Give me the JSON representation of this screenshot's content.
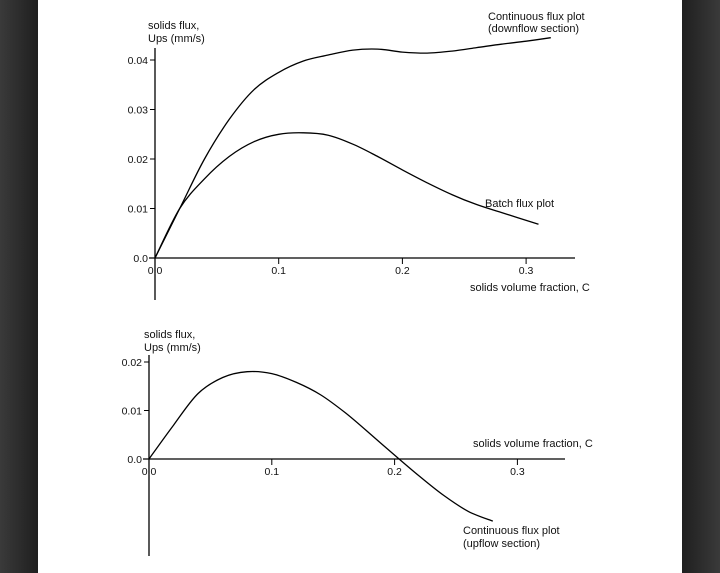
{
  "chart_data": [
    {
      "type": "line",
      "ylabel_line1": "solids flux,",
      "ylabel_line2": "Ups (mm/s)",
      "xlabel": "solids volume fraction, C",
      "xlim": [
        0,
        0.34
      ],
      "ylim": [
        0,
        0.04
      ],
      "x_ticks": [
        0.0,
        0.1,
        0.2,
        0.3
      ],
      "x_tick_labels": [
        "0.0",
        "0.1",
        "0.2",
        "0.3"
      ],
      "y_ticks": [
        0.0,
        0.01,
        0.02,
        0.03,
        0.04
      ],
      "y_tick_labels": [
        "0.0",
        "0.01",
        "0.02",
        "0.03",
        "0.04"
      ],
      "series": [
        {
          "name": "Continuous flux plot (downflow section)",
          "label_line1": "Continuous flux plot",
          "label_line2": "(downflow section)",
          "x": [
            0.0,
            0.02,
            0.04,
            0.06,
            0.08,
            0.1,
            0.12,
            0.14,
            0.16,
            0.18,
            0.2,
            0.22,
            0.24,
            0.26,
            0.28,
            0.3,
            0.32
          ],
          "y": [
            0.0,
            0.01,
            0.02,
            0.028,
            0.034,
            0.0375,
            0.0398,
            0.041,
            0.042,
            0.0422,
            0.0416,
            0.0414,
            0.0418,
            0.0425,
            0.0432,
            0.0438,
            0.0445
          ]
        },
        {
          "name": "Batch flux plot",
          "label_line1": "Batch flux plot",
          "x": [
            0.0,
            0.02,
            0.04,
            0.06,
            0.08,
            0.1,
            0.12,
            0.14,
            0.16,
            0.18,
            0.2,
            0.22,
            0.24,
            0.26,
            0.28,
            0.31
          ],
          "y": [
            0.0,
            0.01,
            0.016,
            0.0205,
            0.0235,
            0.025,
            0.0253,
            0.0248,
            0.023,
            0.0205,
            0.0178,
            0.0152,
            0.0128,
            0.0108,
            0.0092,
            0.0068
          ]
        }
      ]
    },
    {
      "type": "line",
      "ylabel_line1": "solids flux,",
      "ylabel_line2": "Ups (mm/s)",
      "xlabel": "solids volume fraction, C",
      "xlim": [
        0,
        0.34
      ],
      "ylim": [
        -0.02,
        0.02
      ],
      "x_ticks": [
        0.0,
        0.1,
        0.2,
        0.3
      ],
      "x_tick_labels": [
        "0.0",
        "0.1",
        "0.2",
        "0.3"
      ],
      "y_ticks": [
        0.0,
        0.01,
        0.02
      ],
      "y_tick_labels": [
        "0.0",
        "0.01",
        "0.02"
      ],
      "series": [
        {
          "name": "Continuous flux plot (upflow section)",
          "label_line1": "Continuous flux plot",
          "label_line2": "(upflow section)",
          "x": [
            0.0,
            0.02,
            0.04,
            0.06,
            0.08,
            0.1,
            0.12,
            0.14,
            0.16,
            0.18,
            0.2,
            0.22,
            0.24,
            0.26,
            0.28
          ],
          "y": [
            0.0,
            0.007,
            0.0135,
            0.0168,
            0.018,
            0.0176,
            0.0158,
            0.0132,
            0.0095,
            0.0052,
            0.0008,
            -0.0035,
            -0.0075,
            -0.0108,
            -0.0128
          ]
        }
      ]
    }
  ]
}
